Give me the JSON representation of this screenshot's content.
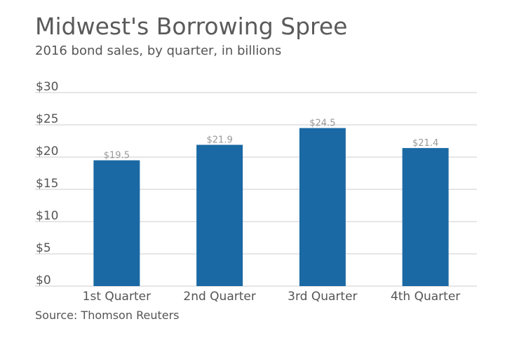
{
  "chart_data": {
    "type": "bar",
    "title": "Midwest's Borrowing Spree",
    "subtitle": "2016 bond sales, by quarter, in billions",
    "source": "Source: Thomson Reuters",
    "categories": [
      "1st Quarter",
      "2nd Quarter",
      "3rd Quarter",
      "4th Quarter"
    ],
    "values": [
      19.5,
      21.9,
      24.5,
      21.4
    ],
    "data_labels": [
      "$19.5",
      "$21.9",
      "$24.5",
      "$21.4"
    ],
    "y_ticks": [
      0,
      5,
      10,
      15,
      20,
      25,
      30
    ],
    "y_tick_labels": [
      "$0",
      "$5",
      "$10",
      "$15",
      "$20",
      "$25",
      "$30"
    ],
    "ylim": [
      0,
      30
    ],
    "grid": true,
    "bar_color": "#1a69a4",
    "grid_color": "#cccccc",
    "legend": "none"
  }
}
